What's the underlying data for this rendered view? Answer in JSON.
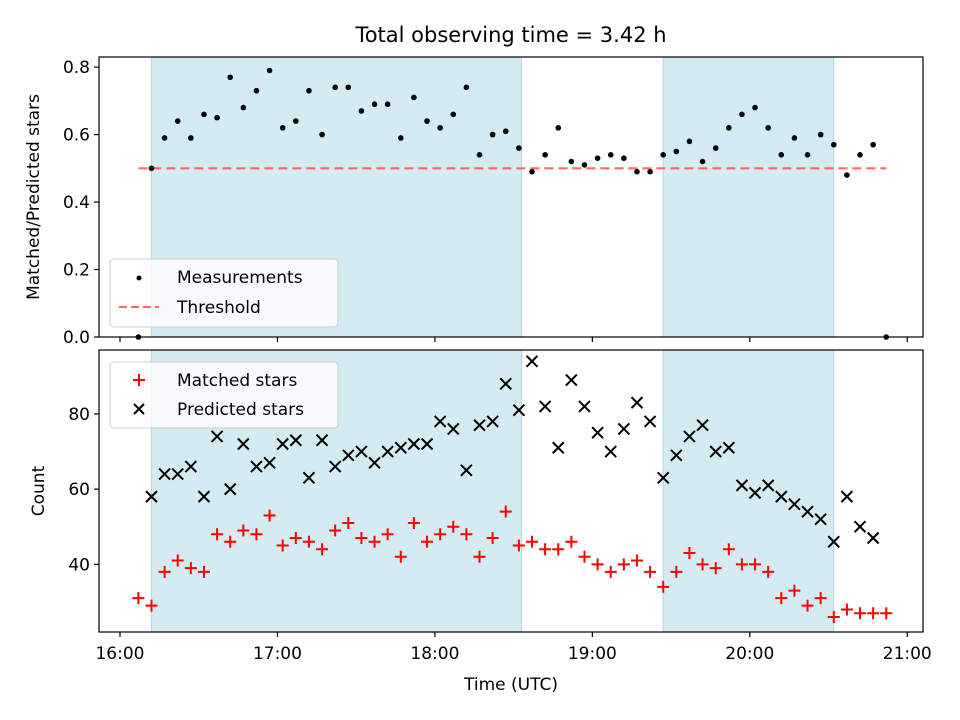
{
  "colors": {
    "band": "#add8e6",
    "measurement": "#000000",
    "threshold": "#ff6666",
    "matched": "#ff0000",
    "predicted": "#000000"
  },
  "chart_data": [
    {
      "type": "scatter",
      "title": "Total observing time = 3.42 h",
      "ylabel": "Matched/Predicted stars",
      "xlabel": "",
      "xlim": [
        "15:52",
        "21:06"
      ],
      "ylim": [
        0,
        0.83
      ],
      "yticks": [
        0.0,
        0.2,
        0.4,
        0.6,
        0.8
      ],
      "ytick_labels": [
        "0.0",
        "0.2",
        "0.4",
        "0.6",
        "0.8"
      ],
      "legend_position": "lower-left",
      "grid": false,
      "shaded_intervals": [
        [
          "16:12",
          "18:33"
        ],
        [
          "19:27",
          "20:32"
        ]
      ],
      "threshold": 0.5,
      "series": [
        {
          "name": "Measurements",
          "marker": "dot",
          "points": [
            [
              "16:07",
              0.0
            ],
            [
              "16:12",
              0.5
            ],
            [
              "16:17",
              0.59
            ],
            [
              "16:22",
              0.64
            ],
            [
              "16:27",
              0.59
            ],
            [
              "16:32",
              0.66
            ],
            [
              "16:37",
              0.65
            ],
            [
              "16:42",
              0.77
            ],
            [
              "16:47",
              0.68
            ],
            [
              "16:52",
              0.73
            ],
            [
              "16:57",
              0.79
            ],
            [
              "17:02",
              0.62
            ],
            [
              "17:07",
              0.64
            ],
            [
              "17:12",
              0.73
            ],
            [
              "17:17",
              0.6
            ],
            [
              "17:22",
              0.74
            ],
            [
              "17:27",
              0.74
            ],
            [
              "17:32",
              0.67
            ],
            [
              "17:37",
              0.69
            ],
            [
              "17:42",
              0.69
            ],
            [
              "17:47",
              0.59
            ],
            [
              "17:52",
              0.71
            ],
            [
              "17:57",
              0.64
            ],
            [
              "18:02",
              0.62
            ],
            [
              "18:07",
              0.66
            ],
            [
              "18:12",
              0.74
            ],
            [
              "18:17",
              0.54
            ],
            [
              "18:22",
              0.6
            ],
            [
              "18:27",
              0.61
            ],
            [
              "18:32",
              0.56
            ],
            [
              "18:37",
              0.49
            ],
            [
              "18:42",
              0.54
            ],
            [
              "18:47",
              0.62
            ],
            [
              "18:52",
              0.52
            ],
            [
              "18:57",
              0.51
            ],
            [
              "19:02",
              0.53
            ],
            [
              "19:07",
              0.54
            ],
            [
              "19:12",
              0.53
            ],
            [
              "19:17",
              0.49
            ],
            [
              "19:22",
              0.49
            ],
            [
              "19:27",
              0.54
            ],
            [
              "19:32",
              0.55
            ],
            [
              "19:37",
              0.58
            ],
            [
              "19:42",
              0.52
            ],
            [
              "19:47",
              0.56
            ],
            [
              "19:52",
              0.62
            ],
            [
              "19:57",
              0.66
            ],
            [
              "20:02",
              0.68
            ],
            [
              "20:07",
              0.62
            ],
            [
              "20:12",
              0.54
            ],
            [
              "20:17",
              0.59
            ],
            [
              "20:22",
              0.54
            ],
            [
              "20:27",
              0.6
            ],
            [
              "20:32",
              0.57
            ],
            [
              "20:37",
              0.48
            ],
            [
              "20:42",
              0.54
            ],
            [
              "20:47",
              0.57
            ],
            [
              "20:52",
              0.0
            ]
          ]
        },
        {
          "name": "Threshold",
          "style": "dashed",
          "points": [
            [
              "16:07",
              0.5
            ],
            [
              "20:52",
              0.5
            ]
          ]
        }
      ]
    },
    {
      "type": "scatter",
      "title": "",
      "xlabel": "Time (UTC)",
      "ylabel": "Count",
      "xlim": [
        "15:52",
        "21:06"
      ],
      "ylim": [
        22,
        97
      ],
      "xticks": [
        "16:00",
        "17:00",
        "18:00",
        "19:00",
        "20:00",
        "21:00"
      ],
      "yticks": [
        40,
        60,
        80
      ],
      "ytick_labels": [
        "40",
        "60",
        "80"
      ],
      "legend_position": "upper-left",
      "grid": false,
      "shaded_intervals": [
        [
          "16:12",
          "18:33"
        ],
        [
          "19:27",
          "20:32"
        ]
      ],
      "series": [
        {
          "name": "Matched stars",
          "marker": "plus",
          "points": [
            [
              "16:07",
              31
            ],
            [
              "16:12",
              29
            ],
            [
              "16:17",
              38
            ],
            [
              "16:22",
              41
            ],
            [
              "16:27",
              39
            ],
            [
              "16:32",
              38
            ],
            [
              "16:37",
              48
            ],
            [
              "16:42",
              46
            ],
            [
              "16:47",
              49
            ],
            [
              "16:52",
              48
            ],
            [
              "16:57",
              53
            ],
            [
              "17:02",
              45
            ],
            [
              "17:07",
              47
            ],
            [
              "17:12",
              46
            ],
            [
              "17:17",
              44
            ],
            [
              "17:22",
              49
            ],
            [
              "17:27",
              51
            ],
            [
              "17:32",
              47
            ],
            [
              "17:37",
              46
            ],
            [
              "17:42",
              48
            ],
            [
              "17:47",
              42
            ],
            [
              "17:52",
              51
            ],
            [
              "17:57",
              46
            ],
            [
              "18:02",
              48
            ],
            [
              "18:07",
              50
            ],
            [
              "18:12",
              48
            ],
            [
              "18:17",
              42
            ],
            [
              "18:22",
              47
            ],
            [
              "18:27",
              54
            ],
            [
              "18:32",
              45
            ],
            [
              "18:37",
              46
            ],
            [
              "18:42",
              44
            ],
            [
              "18:47",
              44
            ],
            [
              "18:52",
              46
            ],
            [
              "18:57",
              42
            ],
            [
              "19:02",
              40
            ],
            [
              "19:07",
              38
            ],
            [
              "19:12",
              40
            ],
            [
              "19:17",
              41
            ],
            [
              "19:22",
              38
            ],
            [
              "19:27",
              34
            ],
            [
              "19:32",
              38
            ],
            [
              "19:37",
              43
            ],
            [
              "19:42",
              40
            ],
            [
              "19:47",
              39
            ],
            [
              "19:52",
              44
            ],
            [
              "19:57",
              40
            ],
            [
              "20:02",
              40
            ],
            [
              "20:07",
              38
            ],
            [
              "20:12",
              31
            ],
            [
              "20:17",
              33
            ],
            [
              "20:22",
              29
            ],
            [
              "20:27",
              31
            ],
            [
              "20:32",
              26
            ],
            [
              "20:37",
              28
            ],
            [
              "20:42",
              27
            ],
            [
              "20:47",
              27
            ],
            [
              "20:52",
              27
            ]
          ]
        },
        {
          "name": "Predicted stars",
          "marker": "x",
          "points": [
            [
              "16:12",
              58
            ],
            [
              "16:17",
              64
            ],
            [
              "16:22",
              64
            ],
            [
              "16:27",
              66
            ],
            [
              "16:32",
              58
            ],
            [
              "16:37",
              74
            ],
            [
              "16:42",
              60
            ],
            [
              "16:47",
              72
            ],
            [
              "16:52",
              66
            ],
            [
              "16:57",
              67
            ],
            [
              "17:02",
              72
            ],
            [
              "17:07",
              73
            ],
            [
              "17:12",
              63
            ],
            [
              "17:17",
              73
            ],
            [
              "17:22",
              66
            ],
            [
              "17:27",
              69
            ],
            [
              "17:32",
              70
            ],
            [
              "17:37",
              67
            ],
            [
              "17:42",
              70
            ],
            [
              "17:47",
              71
            ],
            [
              "17:52",
              72
            ],
            [
              "17:57",
              72
            ],
            [
              "18:02",
              78
            ],
            [
              "18:07",
              76
            ],
            [
              "18:12",
              65
            ],
            [
              "18:17",
              77
            ],
            [
              "18:22",
              78
            ],
            [
              "18:27",
              88
            ],
            [
              "18:32",
              81
            ],
            [
              "18:37",
              94
            ],
            [
              "18:42",
              82
            ],
            [
              "18:47",
              71
            ],
            [
              "18:52",
              89
            ],
            [
              "18:57",
              82
            ],
            [
              "19:02",
              75
            ],
            [
              "19:07",
              70
            ],
            [
              "19:12",
              76
            ],
            [
              "19:17",
              83
            ],
            [
              "19:22",
              78
            ],
            [
              "19:27",
              63
            ],
            [
              "19:32",
              69
            ],
            [
              "19:37",
              74
            ],
            [
              "19:42",
              77
            ],
            [
              "19:47",
              70
            ],
            [
              "19:52",
              71
            ],
            [
              "19:57",
              61
            ],
            [
              "20:02",
              59
            ],
            [
              "20:07",
              61
            ],
            [
              "20:12",
              58
            ],
            [
              "20:17",
              56
            ],
            [
              "20:22",
              54
            ],
            [
              "20:27",
              52
            ],
            [
              "20:32",
              46
            ],
            [
              "20:37",
              58
            ],
            [
              "20:42",
              50
            ],
            [
              "20:47",
              47
            ]
          ]
        }
      ]
    }
  ]
}
